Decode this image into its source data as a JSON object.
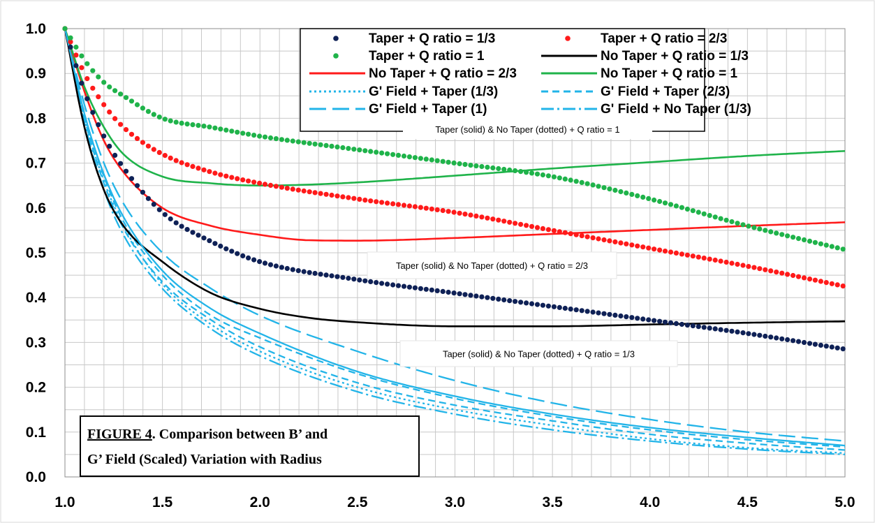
{
  "chart_data": {
    "type": "line",
    "title": "",
    "xlabel": "",
    "ylabel": "",
    "xlim": [
      1.0,
      5.0
    ],
    "ylim": [
      0.0,
      1.0
    ],
    "xticks": [
      "1.0",
      "1.5",
      "2.0",
      "2.5",
      "3.0",
      "3.5",
      "4.0",
      "4.5",
      "5.0"
    ],
    "yticks": [
      "0.0",
      "0.1",
      "0.2",
      "0.3",
      "0.4",
      "0.5",
      "0.6",
      "0.7",
      "0.8",
      "0.9",
      "1.0"
    ],
    "grid": true,
    "legend_placement": "top-right",
    "colors": {
      "navy": "#0f2156",
      "red": "#ff1a1a",
      "green": "#1fb34a",
      "black": "#000000",
      "cyan": "#22b4e8"
    },
    "series": [
      {
        "name": "Taper + Q ratio = 1/3",
        "style": "dots",
        "color": "#0f2156",
        "x": [
          1.0,
          1.1,
          1.2,
          1.3,
          1.5,
          1.75,
          2.0,
          2.5,
          3.0,
          3.5,
          4.0,
          4.5,
          5.0
        ],
        "y": [
          1.0,
          0.86,
          0.76,
          0.69,
          0.59,
          0.525,
          0.48,
          0.44,
          0.41,
          0.38,
          0.35,
          0.32,
          0.285
        ]
      },
      {
        "name": "Taper + Q ratio = 2/3",
        "style": "dots",
        "color": "#ff1a1a",
        "x": [
          1.0,
          1.1,
          1.2,
          1.3,
          1.5,
          1.75,
          2.0,
          2.5,
          3.0,
          3.5,
          4.0,
          4.5,
          5.0
        ],
        "y": [
          1.0,
          0.9,
          0.83,
          0.78,
          0.72,
          0.68,
          0.655,
          0.62,
          0.59,
          0.55,
          0.51,
          0.47,
          0.425
        ]
      },
      {
        "name": "Taper + Q ratio = 1",
        "style": "dots",
        "color": "#1fb34a",
        "x": [
          1.0,
          1.1,
          1.2,
          1.3,
          1.5,
          1.75,
          2.0,
          2.5,
          3.0,
          3.5,
          4.0,
          4.5,
          5.0
        ],
        "y": [
          1.0,
          0.93,
          0.88,
          0.85,
          0.8,
          0.78,
          0.76,
          0.73,
          0.7,
          0.67,
          0.62,
          0.56,
          0.507
        ]
      },
      {
        "name": "No Taper + Q ratio = 1/3",
        "style": "solid",
        "color": "#000000",
        "x": [
          1.0,
          1.1,
          1.2,
          1.3,
          1.5,
          1.75,
          2.0,
          2.25,
          2.5,
          3.0,
          3.5,
          4.0,
          4.5,
          5.0
        ],
        "y": [
          1.0,
          0.78,
          0.64,
          0.56,
          0.48,
          0.41,
          0.375,
          0.355,
          0.345,
          0.336,
          0.336,
          0.34,
          0.344,
          0.347
        ]
      },
      {
        "name": "No Taper + Q ratio = 2/3",
        "style": "solid",
        "color": "#ff1a1a",
        "x": [
          1.0,
          1.1,
          1.2,
          1.3,
          1.5,
          1.75,
          2.0,
          2.25,
          2.5,
          3.0,
          3.5,
          4.0,
          4.5,
          5.0
        ],
        "y": [
          1.0,
          0.86,
          0.75,
          0.68,
          0.6,
          0.56,
          0.54,
          0.528,
          0.527,
          0.533,
          0.542,
          0.551,
          0.56,
          0.568
        ]
      },
      {
        "name": "No Taper + Q ratio = 1",
        "style": "solid",
        "color": "#1fb34a",
        "x": [
          1.0,
          1.1,
          1.2,
          1.3,
          1.5,
          1.75,
          2.0,
          2.25,
          2.5,
          3.0,
          3.5,
          4.0,
          4.5,
          5.0
        ],
        "y": [
          1.0,
          0.87,
          0.78,
          0.72,
          0.67,
          0.655,
          0.65,
          0.652,
          0.657,
          0.672,
          0.688,
          0.702,
          0.716,
          0.727
        ]
      },
      {
        "name": "G' Field + Taper (1/3)",
        "style": "dotted",
        "color": "#22b4e8",
        "x": [
          1.0,
          1.1,
          1.2,
          1.3,
          1.5,
          1.75,
          2.0,
          2.5,
          3.0,
          3.5,
          4.0,
          4.5,
          5.0
        ],
        "y": [
          1.0,
          0.8,
          0.66,
          0.56,
          0.43,
          0.34,
          0.28,
          0.2,
          0.15,
          0.115,
          0.085,
          0.065,
          0.053
        ]
      },
      {
        "name": "G' Field + Taper (2/3)",
        "style": "dashed",
        "color": "#22b4e8",
        "x": [
          1.0,
          1.1,
          1.2,
          1.3,
          1.5,
          1.75,
          2.0,
          2.5,
          3.0,
          3.5,
          4.0,
          4.5,
          5.0
        ],
        "y": [
          1.0,
          0.81,
          0.67,
          0.57,
          0.45,
          0.36,
          0.31,
          0.23,
          0.175,
          0.135,
          0.105,
          0.083,
          0.067
        ]
      },
      {
        "name": "G' Field + Taper (1)",
        "style": "longdash",
        "color": "#22b4e8",
        "x": [
          1.0,
          1.1,
          1.2,
          1.3,
          1.5,
          1.75,
          2.0,
          2.5,
          3.0,
          3.5,
          4.0,
          4.5,
          5.0
        ],
        "y": [
          1.0,
          0.83,
          0.7,
          0.61,
          0.5,
          0.42,
          0.36,
          0.28,
          0.215,
          0.165,
          0.128,
          0.1,
          0.08
        ]
      },
      {
        "name": "G' Field + No Taper (1/3)",
        "style": "dashdot",
        "color": "#22b4e8",
        "x": [
          1.0,
          1.1,
          1.2,
          1.3,
          1.5,
          1.75,
          2.0,
          2.5,
          3.0,
          3.5,
          4.0,
          4.5,
          5.0
        ],
        "y": [
          1.0,
          0.79,
          0.64,
          0.54,
          0.42,
          0.33,
          0.27,
          0.19,
          0.14,
          0.105,
          0.08,
          0.062,
          0.05
        ]
      },
      {
        "name": "",
        "style": "dashed",
        "color": "#22b4e8",
        "x": [
          1.0,
          1.1,
          1.2,
          1.3,
          1.5,
          1.75,
          2.0,
          2.5,
          3.0,
          3.5,
          4.0,
          4.5,
          5.0
        ],
        "y": [
          1.0,
          0.8,
          0.655,
          0.555,
          0.435,
          0.35,
          0.29,
          0.21,
          0.16,
          0.125,
          0.095,
          0.075,
          0.06
        ]
      },
      {
        "name": "",
        "style": "solid",
        "color": "#22b4e8",
        "x": [
          1.0,
          1.1,
          1.2,
          1.3,
          1.5,
          1.75,
          2.0,
          2.5,
          3.0,
          3.5,
          4.0,
          4.5,
          5.0
        ],
        "y": [
          1.0,
          0.81,
          0.675,
          0.58,
          0.46,
          0.375,
          0.32,
          0.235,
          0.18,
          0.14,
          0.11,
          0.088,
          0.07
        ]
      }
    ],
    "legend": [
      {
        "label": "Taper + Q ratio = 1/3",
        "marker": "dot",
        "color": "#0f2156"
      },
      {
        "label": "Taper + Q ratio = 2/3",
        "marker": "dot",
        "color": "#ff1a1a"
      },
      {
        "label": "Taper + Q ratio = 1",
        "marker": "dot",
        "color": "#1fb34a"
      },
      {
        "label": "No Taper + Q ratio = 1/3",
        "marker": "solid",
        "color": "#000000"
      },
      {
        "label": "No Taper + Q ratio = 2/3",
        "marker": "solid",
        "color": "#ff1a1a"
      },
      {
        "label": "No Taper + Q ratio = 1",
        "marker": "solid",
        "color": "#1fb34a"
      },
      {
        "label": "G' Field + Taper (1/3)",
        "marker": "dotted",
        "color": "#22b4e8"
      },
      {
        "label": "G' Field + Taper (2/3)",
        "marker": "dashed",
        "color": "#22b4e8"
      },
      {
        "label": "G' Field + Taper (1)",
        "marker": "longdash",
        "color": "#22b4e8"
      },
      {
        "label": "G' Field + No Taper (1/3)",
        "marker": "dashdot",
        "color": "#22b4e8"
      }
    ],
    "annotations": [
      "Taper (solid) & No Taper (dotted) + Q ratio = 1",
      "Taper (solid) & No Taper (dotted) + Q ratio = 2/3",
      "Taper (solid) & No Taper (dotted) + Q ratio = 1/3"
    ],
    "caption": {
      "line1_bold_underlined": "FIGURE 4",
      "line1_rest": ".  Comparison between B’ and",
      "line2": "G’ Field (Scaled) Variation with Radius"
    }
  }
}
